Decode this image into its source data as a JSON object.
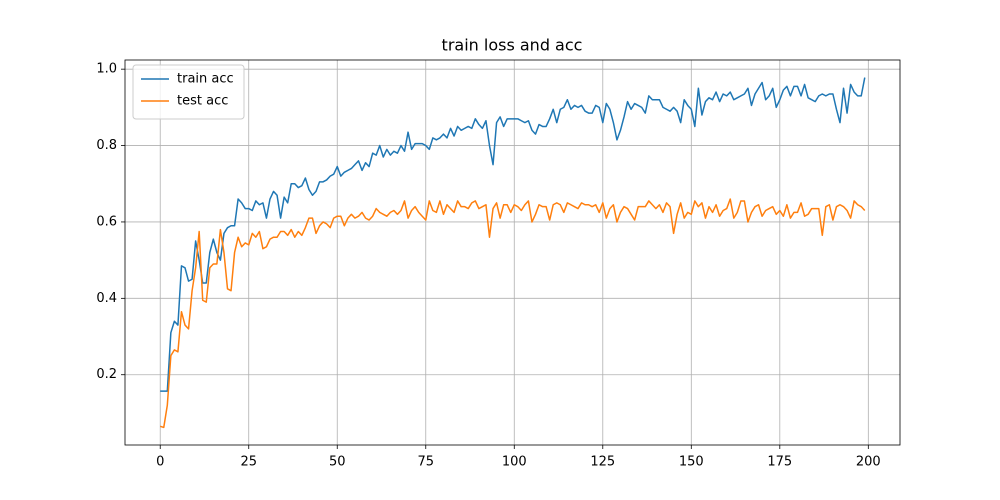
{
  "chart_data": {
    "type": "line",
    "title": "train loss and acc",
    "x": [
      0,
      1,
      2,
      3,
      4,
      5,
      6,
      7,
      8,
      9,
      10,
      11,
      12,
      13,
      14,
      15,
      16,
      17,
      18,
      19,
      20,
      21,
      22,
      23,
      24,
      25,
      26,
      27,
      28,
      29,
      30,
      31,
      32,
      33,
      34,
      35,
      36,
      37,
      38,
      39,
      40,
      41,
      42,
      43,
      44,
      45,
      46,
      47,
      48,
      49,
      50,
      51,
      52,
      53,
      54,
      55,
      56,
      57,
      58,
      59,
      60,
      61,
      62,
      63,
      64,
      65,
      66,
      67,
      68,
      69,
      70,
      71,
      72,
      73,
      74,
      75,
      76,
      77,
      78,
      79,
      80,
      81,
      82,
      83,
      84,
      85,
      86,
      87,
      88,
      89,
      90,
      91,
      92,
      93,
      94,
      95,
      96,
      97,
      98,
      99,
      100,
      101,
      102,
      103,
      104,
      105,
      106,
      107,
      108,
      109,
      110,
      111,
      112,
      113,
      114,
      115,
      116,
      117,
      118,
      119,
      120,
      121,
      122,
      123,
      124,
      125,
      126,
      127,
      128,
      129,
      130,
      131,
      132,
      133,
      134,
      135,
      136,
      137,
      138,
      139,
      140,
      141,
      142,
      143,
      144,
      145,
      146,
      147,
      148,
      149,
      150,
      151,
      152,
      153,
      154,
      155,
      156,
      157,
      158,
      159,
      160,
      161,
      162,
      163,
      164,
      165,
      166,
      167,
      168,
      169,
      170,
      171,
      172,
      173,
      174,
      175,
      176,
      177,
      178,
      179,
      180,
      181,
      182,
      183,
      184,
      185,
      186,
      187,
      188,
      189,
      190,
      191,
      192,
      193,
      194,
      195,
      196,
      197,
      198,
      199
    ],
    "series": [
      {
        "name": "train acc",
        "color": "#1f77b4",
        "values": [
          0.157,
          0.157,
          0.157,
          0.31,
          0.34,
          0.33,
          0.485,
          0.48,
          0.445,
          0.45,
          0.55,
          0.5,
          0.44,
          0.44,
          0.52,
          0.555,
          0.52,
          0.5,
          0.57,
          0.585,
          0.59,
          0.59,
          0.66,
          0.65,
          0.635,
          0.635,
          0.63,
          0.655,
          0.645,
          0.65,
          0.61,
          0.66,
          0.68,
          0.67,
          0.61,
          0.665,
          0.65,
          0.7,
          0.7,
          0.69,
          0.695,
          0.715,
          0.685,
          0.67,
          0.68,
          0.705,
          0.705,
          0.71,
          0.72,
          0.725,
          0.745,
          0.72,
          0.73,
          0.735,
          0.74,
          0.75,
          0.76,
          0.735,
          0.755,
          0.745,
          0.78,
          0.775,
          0.8,
          0.77,
          0.79,
          0.775,
          0.785,
          0.78,
          0.8,
          0.785,
          0.835,
          0.79,
          0.805,
          0.805,
          0.805,
          0.8,
          0.79,
          0.82,
          0.815,
          0.82,
          0.83,
          0.82,
          0.845,
          0.825,
          0.85,
          0.84,
          0.845,
          0.85,
          0.845,
          0.87,
          0.855,
          0.845,
          0.865,
          0.8,
          0.75,
          0.86,
          0.875,
          0.85,
          0.87,
          0.87,
          0.87,
          0.87,
          0.865,
          0.86,
          0.865,
          0.84,
          0.83,
          0.855,
          0.85,
          0.85,
          0.87,
          0.895,
          0.86,
          0.895,
          0.9,
          0.92,
          0.895,
          0.905,
          0.9,
          0.905,
          0.89,
          0.885,
          0.885,
          0.905,
          0.9,
          0.86,
          0.91,
          0.895,
          0.86,
          0.815,
          0.84,
          0.875,
          0.915,
          0.895,
          0.91,
          0.905,
          0.9,
          0.885,
          0.93,
          0.92,
          0.92,
          0.92,
          0.9,
          0.895,
          0.89,
          0.9,
          0.89,
          0.86,
          0.92,
          0.905,
          0.895,
          0.85,
          0.95,
          0.88,
          0.915,
          0.925,
          0.92,
          0.94,
          0.915,
          0.935,
          0.93,
          0.94,
          0.92,
          0.925,
          0.93,
          0.935,
          0.95,
          0.905,
          0.935,
          0.95,
          0.965,
          0.92,
          0.93,
          0.95,
          0.9,
          0.92,
          0.945,
          0.955,
          0.93,
          0.955,
          0.955,
          0.93,
          0.96,
          0.925,
          0.92,
          0.915,
          0.93,
          0.935,
          0.93,
          0.935,
          0.935,
          0.895,
          0.86,
          0.95,
          0.885,
          0.96,
          0.94,
          0.93,
          0.93,
          0.978
        ]
      },
      {
        "name": "test acc",
        "color": "#ff7f0e",
        "values": [
          0.065,
          0.062,
          0.12,
          0.25,
          0.265,
          0.26,
          0.365,
          0.33,
          0.32,
          0.42,
          0.48,
          0.575,
          0.395,
          0.39,
          0.48,
          0.49,
          0.49,
          0.58,
          0.52,
          0.425,
          0.42,
          0.52,
          0.56,
          0.535,
          0.545,
          0.54,
          0.57,
          0.56,
          0.575,
          0.53,
          0.535,
          0.555,
          0.56,
          0.56,
          0.575,
          0.575,
          0.565,
          0.58,
          0.56,
          0.575,
          0.565,
          0.585,
          0.61,
          0.61,
          0.57,
          0.59,
          0.6,
          0.595,
          0.585,
          0.61,
          0.615,
          0.615,
          0.59,
          0.61,
          0.62,
          0.61,
          0.615,
          0.625,
          0.61,
          0.605,
          0.615,
          0.635,
          0.625,
          0.62,
          0.615,
          0.625,
          0.63,
          0.62,
          0.63,
          0.655,
          0.61,
          0.63,
          0.64,
          0.625,
          0.615,
          0.605,
          0.655,
          0.63,
          0.625,
          0.655,
          0.62,
          0.645,
          0.635,
          0.625,
          0.655,
          0.64,
          0.64,
          0.635,
          0.65,
          0.655,
          0.635,
          0.64,
          0.645,
          0.56,
          0.635,
          0.65,
          0.61,
          0.645,
          0.645,
          0.625,
          0.645,
          0.64,
          0.63,
          0.645,
          0.655,
          0.6,
          0.62,
          0.645,
          0.64,
          0.64,
          0.605,
          0.645,
          0.65,
          0.645,
          0.625,
          0.65,
          0.645,
          0.64,
          0.635,
          0.65,
          0.645,
          0.645,
          0.64,
          0.645,
          0.625,
          0.65,
          0.61,
          0.635,
          0.645,
          0.6,
          0.625,
          0.64,
          0.635,
          0.62,
          0.605,
          0.64,
          0.64,
          0.64,
          0.655,
          0.645,
          0.635,
          0.645,
          0.625,
          0.65,
          0.64,
          0.57,
          0.62,
          0.65,
          0.61,
          0.625,
          0.62,
          0.655,
          0.64,
          0.65,
          0.61,
          0.64,
          0.625,
          0.645,
          0.615,
          0.63,
          0.635,
          0.66,
          0.61,
          0.625,
          0.655,
          0.655,
          0.6,
          0.625,
          0.64,
          0.645,
          0.615,
          0.63,
          0.635,
          0.64,
          0.62,
          0.63,
          0.615,
          0.645,
          0.61,
          0.625,
          0.625,
          0.65,
          0.615,
          0.62,
          0.635,
          0.635,
          0.635,
          0.565,
          0.64,
          0.645,
          0.605,
          0.64,
          0.645,
          0.64,
          0.63,
          0.61,
          0.655,
          0.645,
          0.64,
          0.63
        ]
      }
    ],
    "xlim": [
      -9.95,
      208.95
    ],
    "xticks": [
      0,
      25,
      50,
      75,
      100,
      125,
      150,
      175,
      200
    ],
    "ylim": [
      0.016,
      1.024
    ],
    "yticks": [
      0.2,
      0.4,
      0.6,
      0.8,
      {
        "value": 1,
        "label": "1.0"
      }
    ],
    "grid": true,
    "legend": "upper left"
  }
}
